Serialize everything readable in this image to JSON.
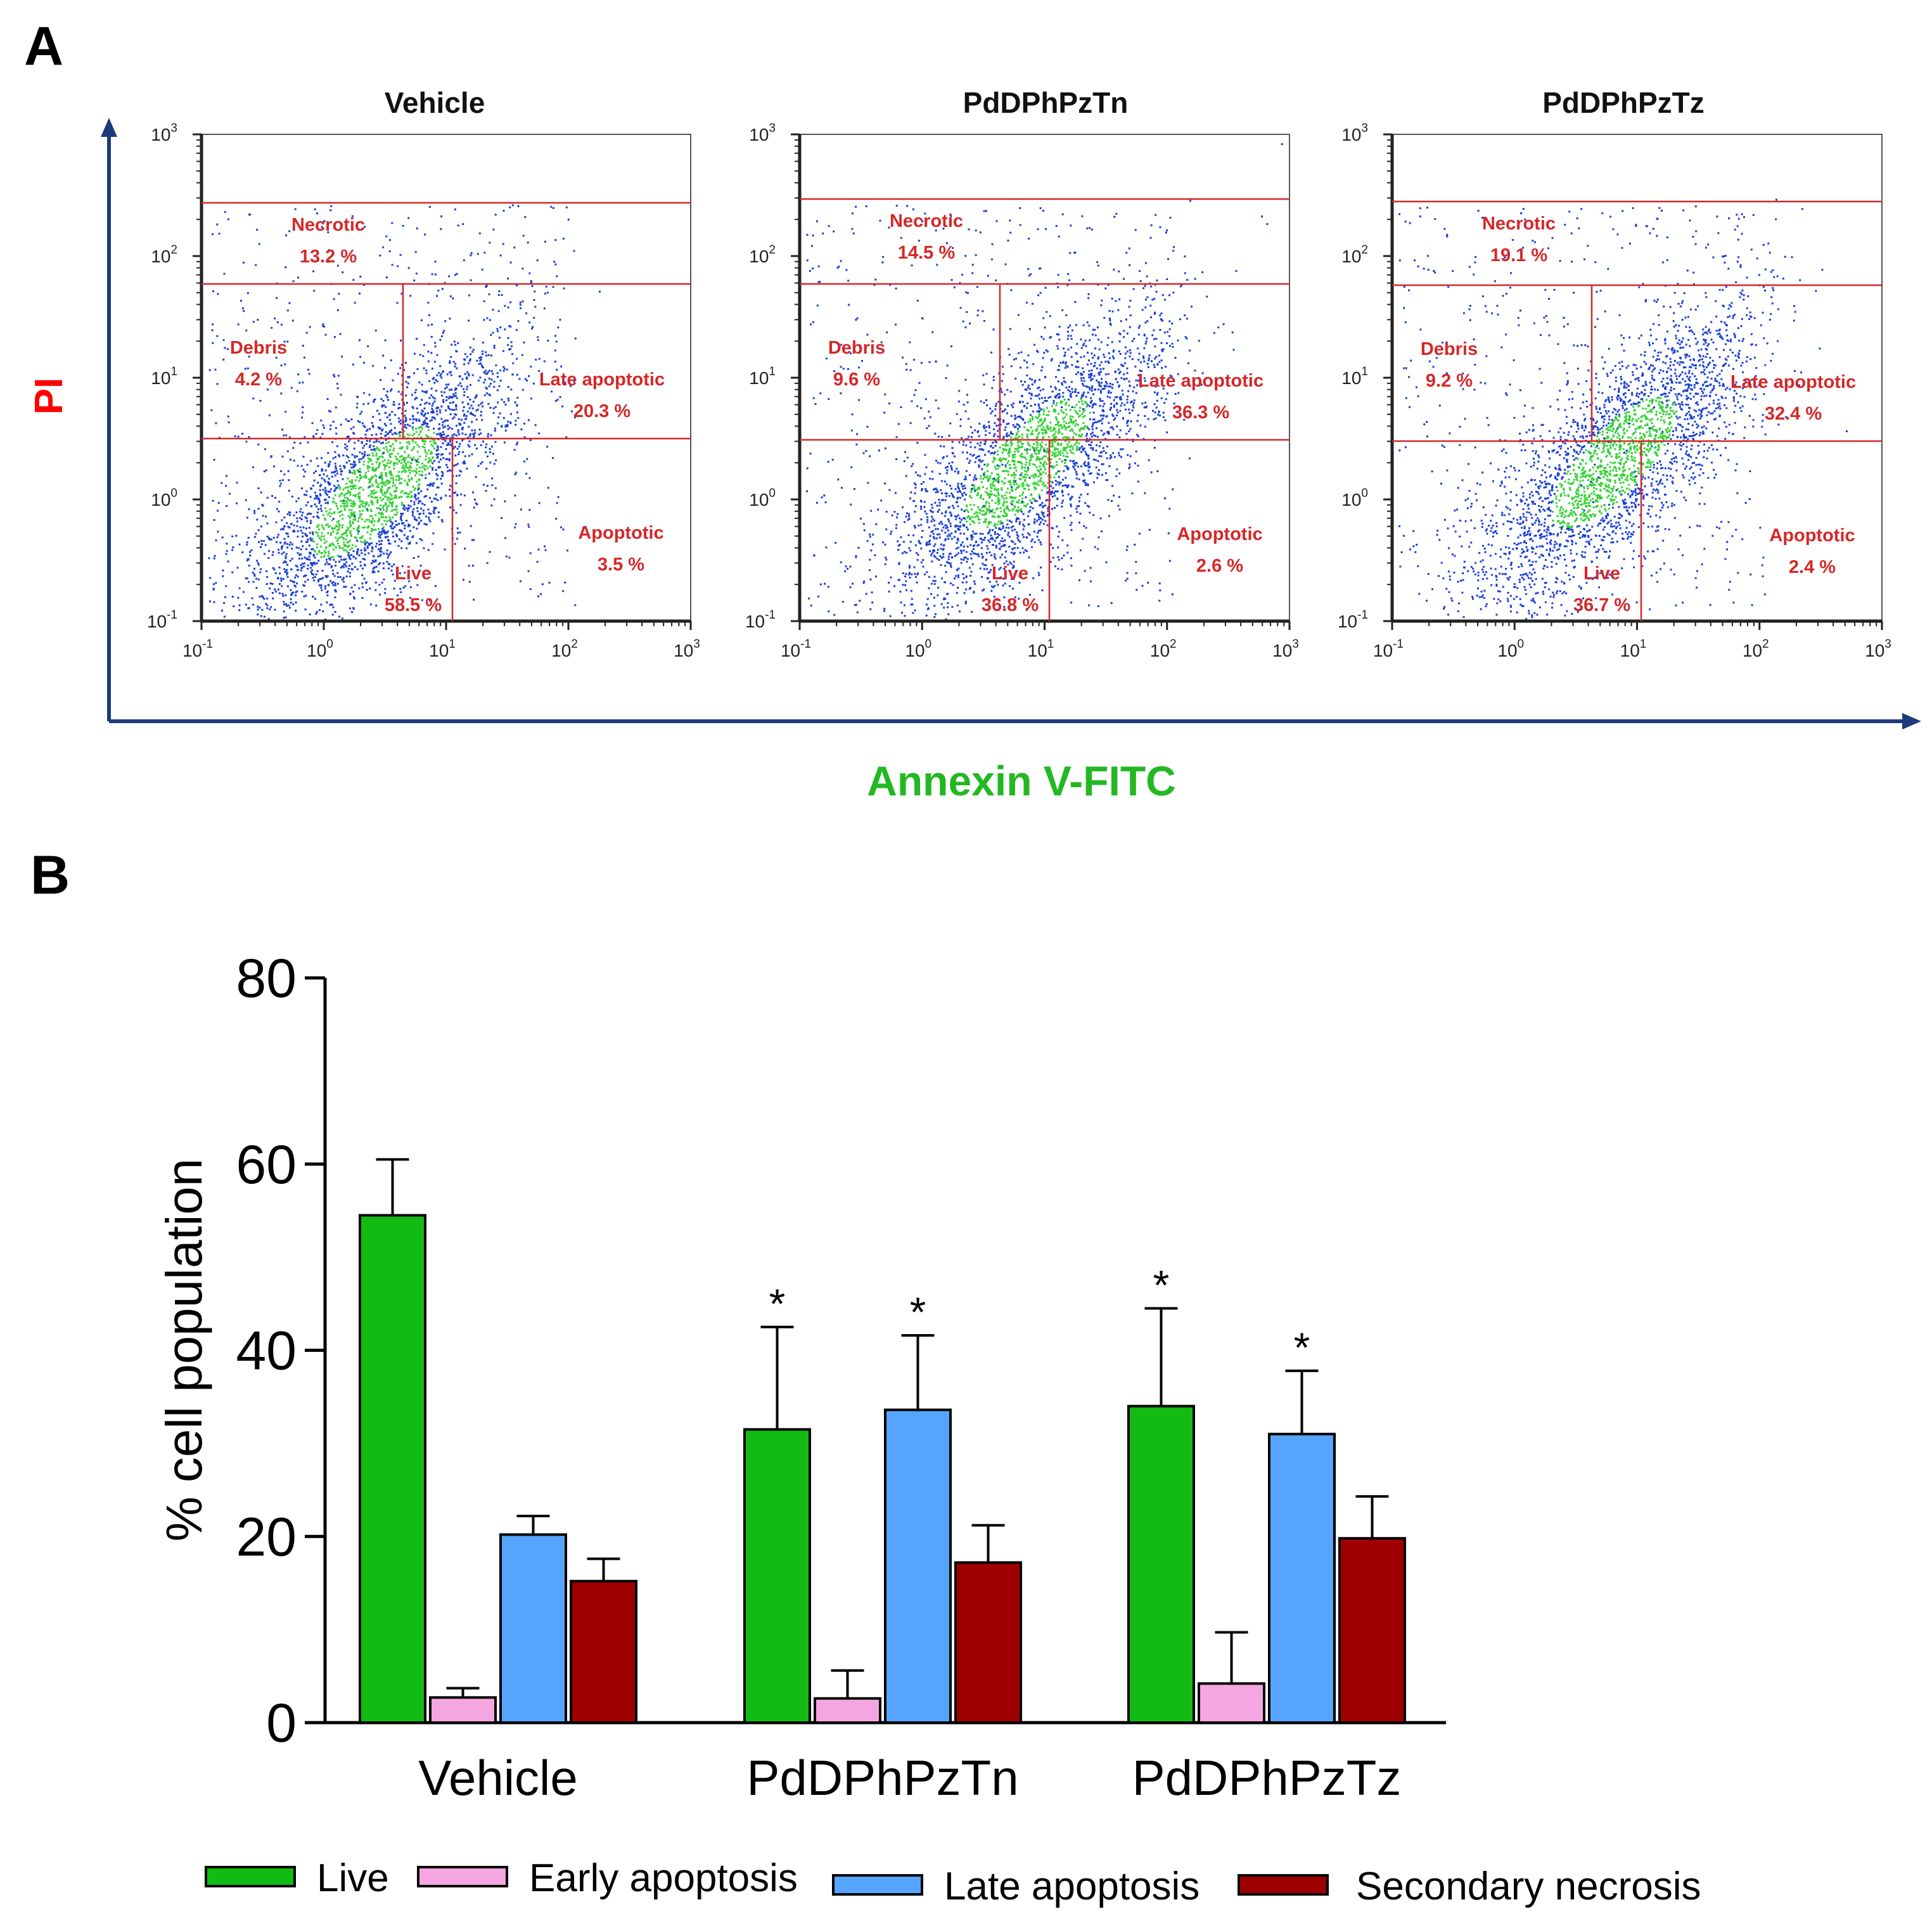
{
  "panel_labels": {
    "a": "A",
    "b": "B"
  },
  "colors": {
    "gate": "#d62728",
    "axis_dark": "#1f3a7a",
    "pi_label": "#ff0000",
    "annexin_label": "#22b822",
    "live": "#11bb11",
    "early": "#f4a6e0",
    "late": "#55a5ff",
    "secondary": "#9e0000",
    "dot_blue": "#1a3fd6",
    "dot_green": "#32d232"
  },
  "panel_a": {
    "y_axis_label": "PI",
    "x_axis_label": "Annexin V-FITC",
    "tick_base": "10",
    "tick_exponents": [
      "-1",
      "0",
      "1",
      "2",
      "3"
    ],
    "plots": [
      {
        "title": "Vehicle",
        "gates": [
          {
            "name": "Necrotic",
            "value": "13.2 %"
          },
          {
            "name": "Debris",
            "value": "4.2 %"
          },
          {
            "name": "Late apoptotic",
            "value": "20.3 %"
          },
          {
            "name": "Apoptotic",
            "value": "3.5 %"
          },
          {
            "name": "Live",
            "value": "58.5 %"
          }
        ]
      },
      {
        "title": "PdDPhPzTn",
        "gates": [
          {
            "name": "Necrotic",
            "value": "14.5 %"
          },
          {
            "name": "Debris",
            "value": "9.6 %"
          },
          {
            "name": "Late apoptotic",
            "value": "36.3 %"
          },
          {
            "name": "Apoptotic",
            "value": "2.6 %"
          },
          {
            "name": "Live",
            "value": "36.8 %"
          }
        ]
      },
      {
        "title": "PdDPhPzTz",
        "gates": [
          {
            "name": "Necrotic",
            "value": "19.1 %"
          },
          {
            "name": "Debris",
            "value": "9.2 %"
          },
          {
            "name": "Late apoptotic",
            "value": "32.4 %"
          },
          {
            "name": "Apoptotic",
            "value": "2.4 %"
          },
          {
            "name": "Live",
            "value": "36.7 %"
          }
        ]
      }
    ]
  },
  "chart_data": {
    "type": "bar",
    "title": "",
    "xlabel": "",
    "ylabel": "% cell population",
    "ylim": [
      0,
      80
    ],
    "yticks": [
      0,
      20,
      40,
      60,
      80
    ],
    "categories": [
      "Vehicle",
      "PdDPhPzTn",
      "PdDPhPzTz"
    ],
    "series": [
      {
        "name": "Live",
        "color": "#11bb11",
        "values": [
          54.5,
          31.5,
          34
        ],
        "errors": [
          6,
          11,
          10.5
        ],
        "significant": [
          false,
          true,
          true
        ]
      },
      {
        "name": "Early apoptosis",
        "color": "#f4a6e0",
        "values": [
          2.7,
          2.6,
          4.2
        ],
        "errors": [
          1,
          3,
          5.5
        ],
        "significant": [
          false,
          false,
          false
        ]
      },
      {
        "name": "Late apoptosis",
        "color": "#55a5ff",
        "values": [
          20.2,
          33.6,
          31
        ],
        "errors": [
          2,
          8,
          6.8
        ],
        "significant": [
          false,
          true,
          true
        ]
      },
      {
        "name": "Secondary necrosis",
        "color": "#9e0000",
        "values": [
          15.2,
          17.2,
          19.8
        ],
        "errors": [
          2.4,
          4,
          4.5
        ],
        "significant": [
          false,
          false,
          false
        ]
      }
    ],
    "significance_marker": "*",
    "legend_position": "bottom"
  }
}
